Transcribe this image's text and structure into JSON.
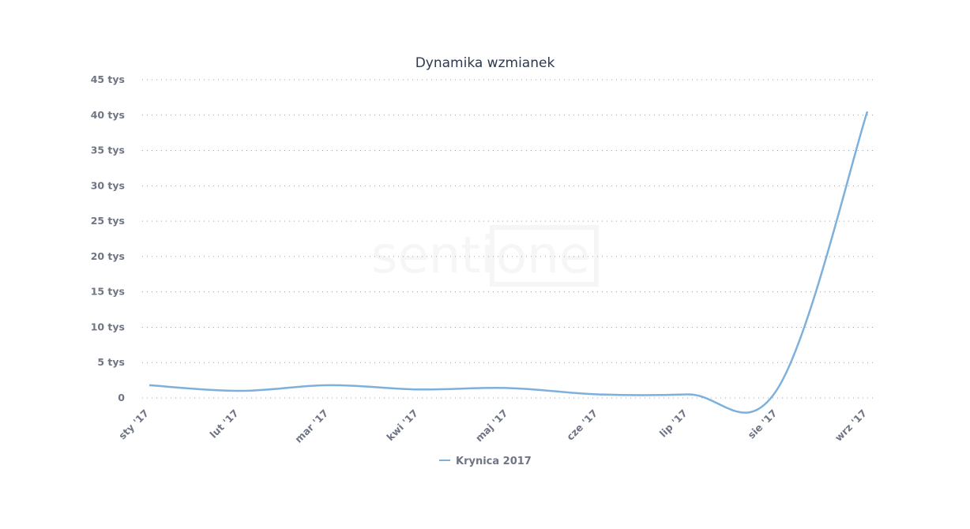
{
  "watermark": "sentione",
  "chart_data": {
    "type": "line",
    "title": "Dynamika wzmianek",
    "xlabel": "",
    "ylabel": "",
    "categories": [
      "sty '17",
      "lut '17",
      "mar '17",
      "kwi '17",
      "maj '17",
      "cze '17",
      "lip '17",
      "sie '17",
      "wrz '17"
    ],
    "series": [
      {
        "name": "Krynica 2017",
        "color": "#7eb0dc",
        "values": [
          1800,
          1000,
          1800,
          1200,
          1400,
          500,
          500,
          1300,
          40500
        ]
      }
    ],
    "ylim": [
      0,
      45000
    ],
    "yticks": [
      0,
      5000,
      10000,
      15000,
      20000,
      25000,
      30000,
      35000,
      40000,
      45000
    ],
    "ytick_labels": [
      "0",
      "5 tys",
      "10 tys",
      "15 tys",
      "20 tys",
      "25 tys",
      "30 tys",
      "35 tys",
      "40 tys",
      "45 tys"
    ],
    "grid": true,
    "legend": "bottom-center"
  }
}
